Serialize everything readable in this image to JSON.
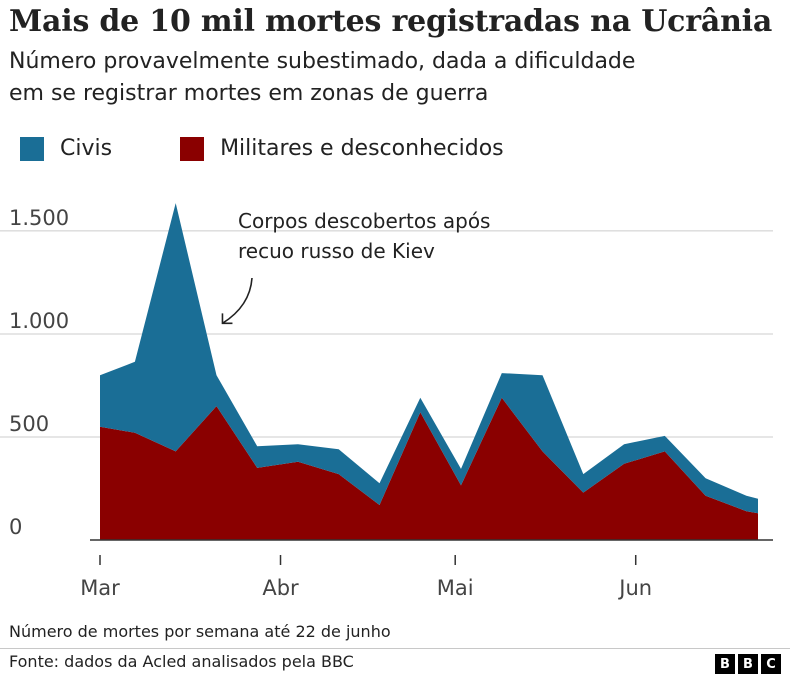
{
  "chart_data": {
    "type": "area",
    "stacked": true,
    "title": "Mais de 10 mil mortes registradas na Ucrânia",
    "subtitle_lines": [
      "Número provavelmente subestimado, dada a dificuldade",
      "em se registrar mortes em zonas de guerra"
    ],
    "x": [
      "2022-03-01",
      "2022-03-07",
      "2022-03-14",
      "2022-03-21",
      "2022-03-28",
      "2022-04-04",
      "2022-04-11",
      "2022-04-18",
      "2022-04-25",
      "2022-05-02",
      "2022-05-09",
      "2022-05-16",
      "2022-05-23",
      "2022-05-30",
      "2022-06-06",
      "2022-06-13",
      "2022-06-20",
      "2022-06-22"
    ],
    "x_ticks": [
      {
        "date": "2022-03-01",
        "label": "Mar"
      },
      {
        "date": "2022-04-01",
        "label": "Abr"
      },
      {
        "date": "2022-05-01",
        "label": "Mai"
      },
      {
        "date": "2022-06-01",
        "label": "Jun"
      }
    ],
    "series": [
      {
        "name": "Militares e desconhecidos",
        "color": "#8a0000",
        "values": [
          550,
          520,
          430,
          650,
          350,
          380,
          320,
          170,
          620,
          265,
          690,
          430,
          230,
          370,
          430,
          215,
          140,
          130
        ]
      },
      {
        "name": "Civis",
        "color": "#1a6e96",
        "values": [
          250,
          345,
          1205,
          150,
          105,
          85,
          120,
          105,
          70,
          80,
          120,
          370,
          90,
          95,
          75,
          85,
          75,
          70
        ]
      }
    ],
    "ylim": [
      0,
      1650
    ],
    "y_ticks": [
      0,
      500,
      1000,
      1500
    ],
    "y_tick_labels": [
      "0",
      "500",
      "1.000",
      "1.500"
    ],
    "grid": true,
    "legend_position": "top-left",
    "annotation": {
      "lines": [
        "Corpos descobertos após",
        "recuo russo de Kiev"
      ],
      "arrow_target_x": "2022-03-21",
      "arrow_target_y": 1100
    }
  },
  "footnote": "Número de mortes por semana até 22 de junho",
  "source": "Fonte: dados da Acled analisados pela BBC",
  "logo_letters": [
    "B",
    "B",
    "C"
  ]
}
